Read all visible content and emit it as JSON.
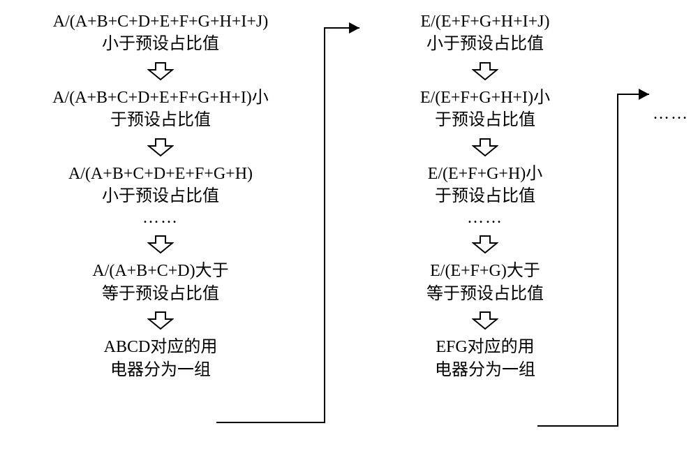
{
  "general": {
    "less_than_label": "小于预设占比值",
    "less_than_label_inline_suffix": "小",
    "less_than_label_line2": "于预设占比值",
    "ge_label_inline_suffix": "大于",
    "ge_label_line2": "等于预设占比值",
    "dots": "……",
    "arrow_stroke": "#000000",
    "arrow_fill": "#ffffff",
    "text_color": "#000000",
    "background": "#ffffff"
  },
  "col1": {
    "step1_formula": "A/(A+B+C+D+E+F+G+H+I+J)",
    "step2_formula": "A/(A+B+C+D+E+F+G+H+I)",
    "step3_formula": "A/(A+B+C+D+E+F+G+H)",
    "step4_formula": "A/(A+B+C+D)",
    "result_line1": "ABCD对应的用",
    "result_line2": "电器分为一组"
  },
  "col2": {
    "step1_formula": "E/(E+F+G+H+I+J)",
    "step2_formula": "E/(E+F+G+H+I)",
    "step3_formula": "E/(E+F+G+H)",
    "step4_formula": "E/(E+F+G)",
    "result_line1": "EFG对应的用",
    "result_line2": "电器分为一组"
  },
  "layout": {
    "down_arrow_w": 38,
    "down_arrow_h": 28
  }
}
